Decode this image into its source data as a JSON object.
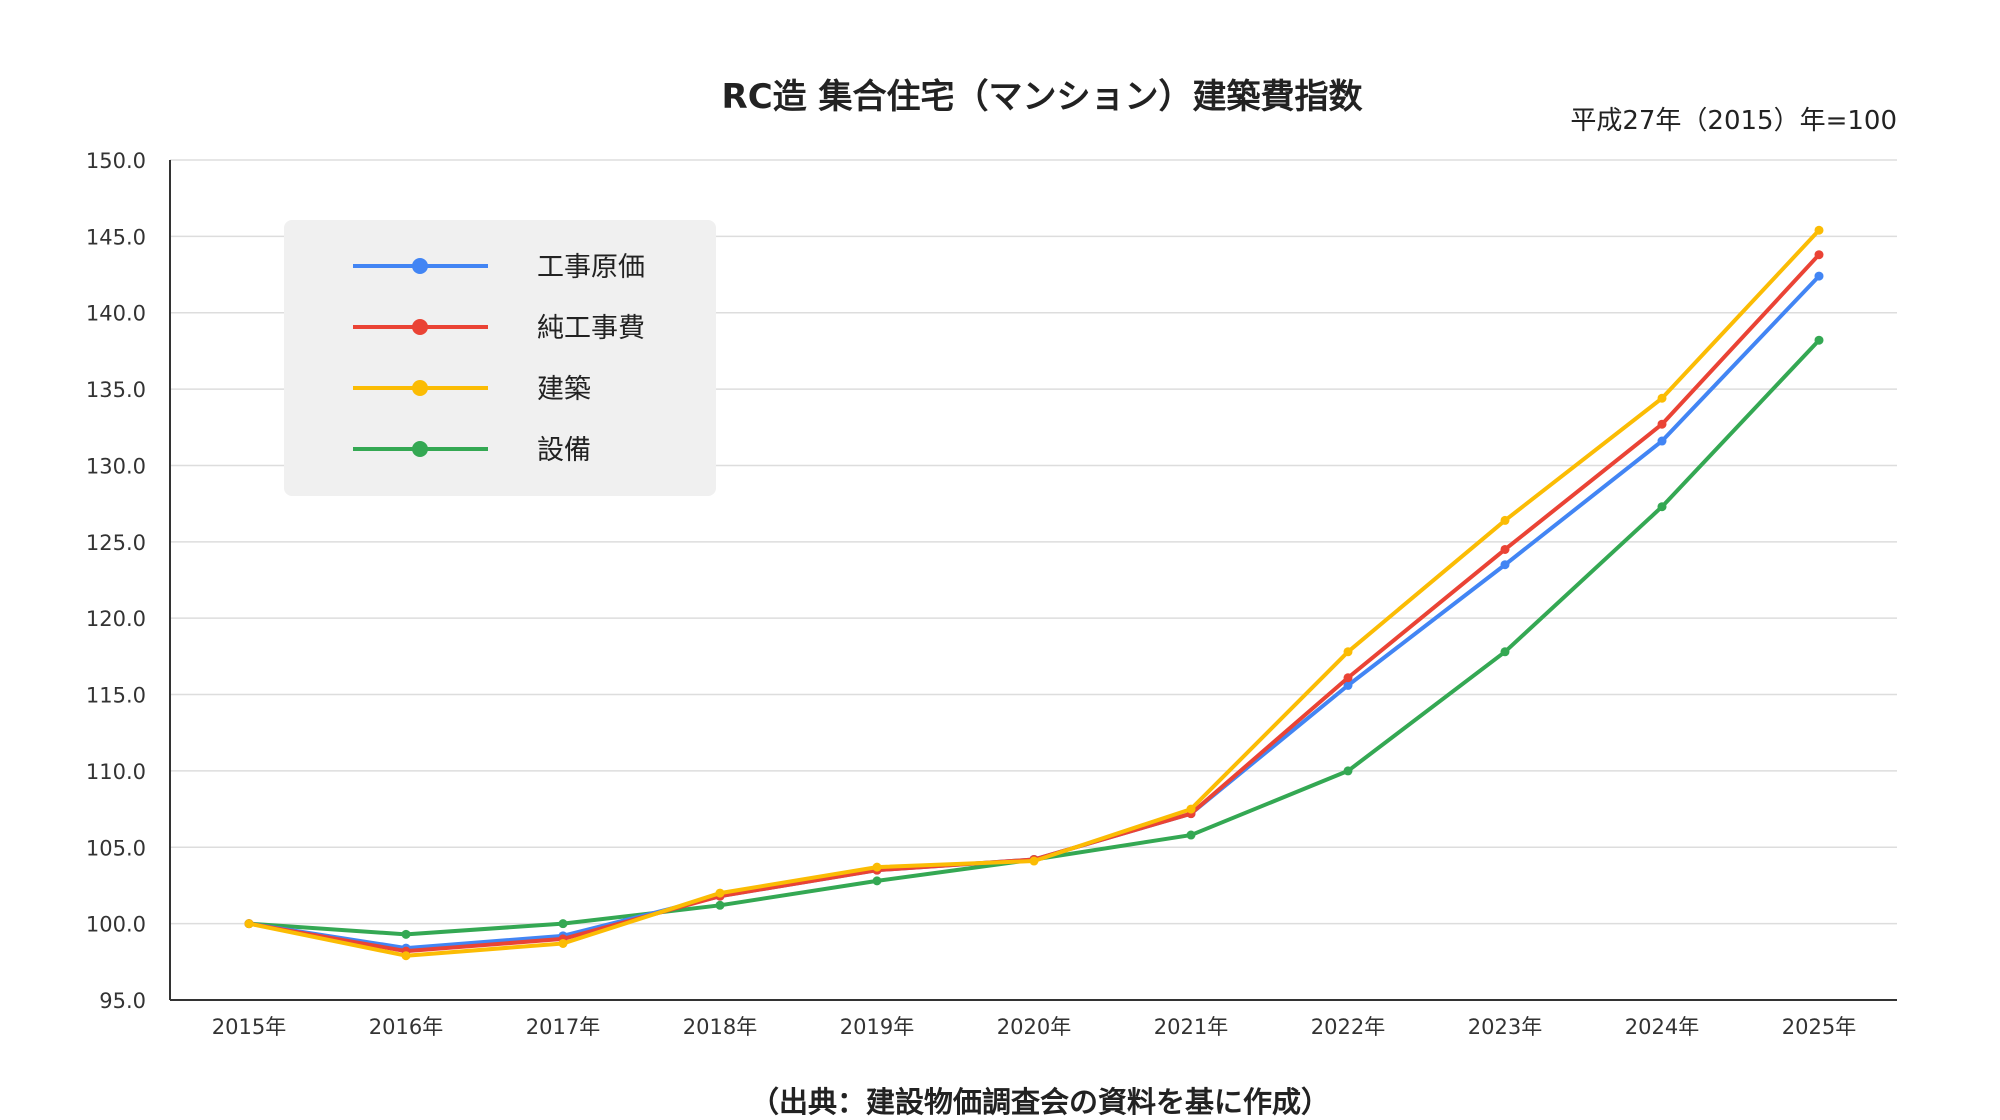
{
  "chart_data": {
    "type": "line",
    "title": "RC造 集合住宅（マンション）建築費指数",
    "subtitle": "平成27年（2015）年=100",
    "source": "（出典：建設物価調査会の資料を基に作成）",
    "categories": [
      "2015年",
      "2016年",
      "2017年",
      "2018年",
      "2019年",
      "2020年",
      "2021年",
      "2022年",
      "2023年",
      "2024年",
      "2025年"
    ],
    "y_ticks": [
      "150.0",
      "145.0",
      "140.0",
      "135.0",
      "130.0",
      "125.0",
      "120.0",
      "115.0",
      "110.0",
      "105.0",
      "100.0",
      "95.0"
    ],
    "ylim": [
      95,
      150
    ],
    "grid": true,
    "legend_position": "top-left",
    "series": [
      {
        "name": "工事原価",
        "color": "#4285F4",
        "values": [
          100.0,
          98.4,
          99.2,
          101.8,
          103.5,
          104.2,
          107.2,
          115.6,
          123.5,
          131.6,
          142.4
        ]
      },
      {
        "name": "純工事費",
        "color": "#EA4335",
        "values": [
          100.0,
          98.2,
          99.0,
          101.8,
          103.5,
          104.2,
          107.2,
          116.1,
          124.5,
          132.7,
          143.8
        ]
      },
      {
        "name": "建築",
        "color": "#FBBC04",
        "values": [
          100.0,
          97.9,
          98.7,
          102.0,
          103.7,
          104.1,
          107.5,
          117.8,
          126.4,
          134.4,
          145.4
        ]
      },
      {
        "name": "設備",
        "color": "#34A853",
        "values": [
          100.0,
          99.3,
          100.0,
          101.2,
          102.8,
          104.2,
          105.8,
          110.0,
          117.8,
          127.3,
          138.2
        ]
      }
    ]
  }
}
